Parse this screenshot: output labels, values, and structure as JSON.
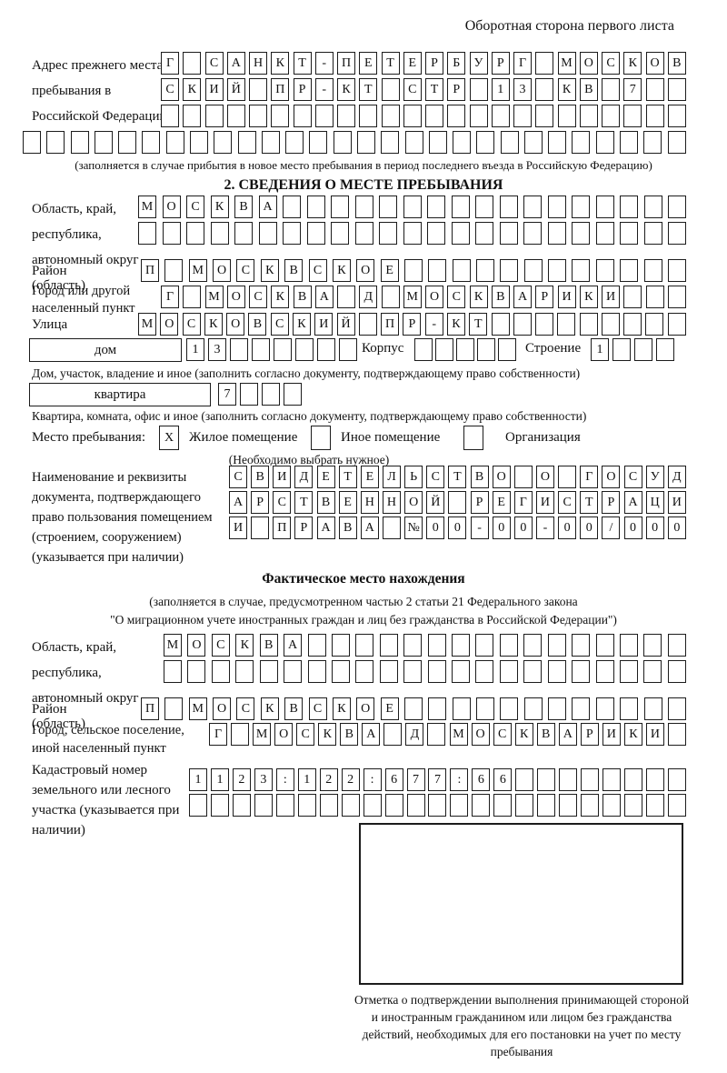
{
  "page_title": "Оборотная сторона первого листа",
  "prev_address": {
    "label": "Адрес прежнего места пребывания в Российской Федерации",
    "rows": [
      [
        "Г",
        "",
        "С",
        "А",
        "Н",
        "К",
        "Т",
        "-",
        "П",
        "Е",
        "Т",
        "Е",
        "Р",
        "Б",
        "У",
        "Р",
        "Г",
        "",
        "М",
        "О",
        "С",
        "К",
        "О",
        "В"
      ],
      [
        "С",
        "К",
        "И",
        "Й",
        "",
        "П",
        "Р",
        "-",
        "К",
        "Т",
        "",
        "С",
        "Т",
        "Р",
        "",
        "1",
        "3",
        "",
        "К",
        "В",
        "",
        "7",
        "",
        ""
      ],
      [
        "",
        "",
        "",
        "",
        "",
        "",
        "",
        "",
        "",
        "",
        "",
        "",
        "",
        "",
        "",
        "",
        "",
        "",
        "",
        "",
        "",
        "",
        "",
        ""
      ],
      [
        "",
        "",
        "",
        "",
        "",
        "",
        "",
        "",
        "",
        "",
        "",
        "",
        "",
        "",
        "",
        "",
        "",
        "",
        "",
        "",
        "",
        "",
        "",
        "",
        "",
        "",
        "",
        ""
      ]
    ],
    "note": "(заполняется в случае прибытия в новое место пребывания в период последнего въезда в Российскую Федерацию)"
  },
  "section2": {
    "title": "2. СВЕДЕНИЯ О МЕСТЕ ПРЕБЫВАНИЯ",
    "region": {
      "label": "Область, край, республика, автономный округ (область)",
      "rows": [
        [
          "М",
          "О",
          "С",
          "К",
          "В",
          "А",
          "",
          "",
          "",
          "",
          "",
          "",
          "",
          "",
          "",
          "",
          "",
          "",
          "",
          "",
          "",
          "",
          ""
        ],
        [
          "",
          "",
          "",
          "",
          "",
          "",
          "",
          "",
          "",
          "",
          "",
          "",
          "",
          "",
          "",
          "",
          "",
          "",
          "",
          "",
          "",
          "",
          ""
        ]
      ]
    },
    "district": {
      "label": "Район",
      "cells": [
        "П",
        "",
        "М",
        "О",
        "С",
        "К",
        "В",
        "С",
        "К",
        "О",
        "Е",
        "",
        "",
        "",
        "",
        "",
        "",
        "",
        "",
        "",
        "",
        "",
        ""
      ]
    },
    "city": {
      "label": "Город или другой населенный пункт",
      "cells": [
        "Г",
        "",
        "М",
        "О",
        "С",
        "К",
        "В",
        "А",
        "",
        "Д",
        "",
        "М",
        "О",
        "С",
        "К",
        "В",
        "А",
        "Р",
        "И",
        "К",
        "И",
        "",
        "",
        ""
      ]
    },
    "street": {
      "label": "Улица",
      "cells": [
        "М",
        "О",
        "С",
        "К",
        "О",
        "В",
        "С",
        "К",
        "И",
        "Й",
        "",
        "П",
        "Р",
        "-",
        "К",
        "Т",
        "",
        "",
        "",
        "",
        "",
        "",
        "",
        "",
        ""
      ]
    },
    "house": {
      "label": "дом",
      "cells": [
        "1",
        "3",
        "",
        "",
        "",
        "",
        "",
        ""
      ],
      "korpus_label": "Корпус",
      "korpus_cells": [
        "",
        "",
        "",
        "",
        ""
      ],
      "stroenie_label": "Строение",
      "stroenie_cells": [
        "1",
        "",
        "",
        ""
      ]
    },
    "house_note": "Дом, участок, владение и иное (заполнить согласно документу, подтверждающему право собственности)",
    "apartment": {
      "label": "квартира",
      "cells": [
        "7",
        "",
        "",
        ""
      ]
    },
    "apartment_note": "Квартира, комната, офис и иное (заполнить согласно документу, подтверждающему право собственности)",
    "stay_type": {
      "label": "Место пребывания:",
      "options": [
        {
          "label": "Жилое помещение",
          "checked": "X"
        },
        {
          "label": "Иное помещение",
          "checked": ""
        },
        {
          "label": "Организация",
          "checked": ""
        }
      ],
      "note": "(Необходимо выбрать нужное)"
    },
    "document": {
      "label": "Наименование и реквизиты документа, подтверждающего право пользования помещением (строением, сооружением) (указывается при наличии)",
      "rows": [
        [
          "С",
          "В",
          "И",
          "Д",
          "Е",
          "Т",
          "Е",
          "Л",
          "Ь",
          "С",
          "Т",
          "В",
          "О",
          "",
          "О",
          "",
          "Г",
          "О",
          "С",
          "У",
          "Д"
        ],
        [
          "А",
          "Р",
          "С",
          "Т",
          "В",
          "Е",
          "Н",
          "Н",
          "О",
          "Й",
          "",
          "Р",
          "Е",
          "Г",
          "И",
          "С",
          "Т",
          "Р",
          "А",
          "Ц",
          "И"
        ],
        [
          "И",
          "",
          "П",
          "Р",
          "А",
          "В",
          "А",
          "",
          "№",
          "0",
          "0",
          "-",
          "0",
          "0",
          "-",
          "0",
          "0",
          "/",
          "0",
          "0",
          "0"
        ]
      ]
    }
  },
  "actual_location": {
    "title": "Фактическое место нахождения",
    "note_line1": "(заполняется в случае, предусмотренном частью 2 статьи 21 Федерального закона",
    "note_line2": "\"О миграционном учете иностранных граждан и лиц без гражданства в Российской Федерации\")",
    "region": {
      "label": "Область, край, республика, автономный округ (область)",
      "rows": [
        [
          "М",
          "О",
          "С",
          "К",
          "В",
          "А",
          "",
          "",
          "",
          "",
          "",
          "",
          "",
          "",
          "",
          "",
          "",
          "",
          "",
          "",
          "",
          ""
        ],
        [
          "",
          "",
          "",
          "",
          "",
          "",
          "",
          "",
          "",
          "",
          "",
          "",
          "",
          "",
          "",
          "",
          "",
          "",
          "",
          "",
          "",
          ""
        ]
      ]
    },
    "district": {
      "label": "Район",
      "cells": [
        "П",
        "",
        "М",
        "О",
        "С",
        "К",
        "В",
        "С",
        "К",
        "О",
        "Е",
        "",
        "",
        "",
        "",
        "",
        "",
        "",
        "",
        "",
        "",
        "",
        ""
      ]
    },
    "city": {
      "label": "Город, сельское поселение, иной населенный пункт",
      "cells": [
        "Г",
        "",
        "М",
        "О",
        "С",
        "К",
        "В",
        "А",
        "",
        "Д",
        "",
        "М",
        "О",
        "С",
        "К",
        "В",
        "А",
        "Р",
        "И",
        "К",
        "И",
        ""
      ]
    },
    "cadastral": {
      "label": "Кадастровый номер земельного или лесного участка (указывается при наличии)",
      "rows": [
        [
          "1",
          "1",
          "2",
          "3",
          ":",
          "1",
          "2",
          "2",
          ":",
          "6",
          "7",
          "7",
          ":",
          "6",
          "6",
          "",
          "",
          "",
          "",
          "",
          "",
          "",
          ""
        ],
        [
          "",
          "",
          "",
          "",
          "",
          "",
          "",
          "",
          "",
          "",
          "",
          "",
          "",
          "",
          "",
          "",
          "",
          "",
          "",
          "",
          "",
          "",
          ""
        ]
      ]
    },
    "stamp_caption": "Отметка о подтверждении выполнения принимающей стороной и иностранным гражданином или лицом без гражданства действий, необходимых для его постановки на учет по месту пребывания"
  }
}
